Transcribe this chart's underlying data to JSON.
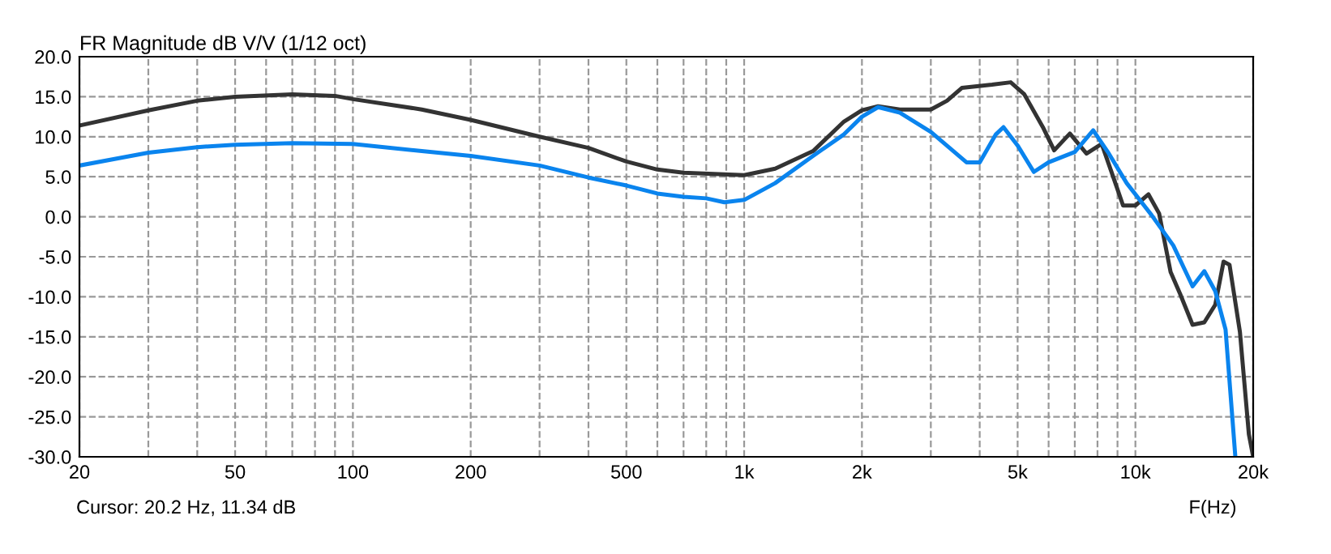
{
  "chart_data": {
    "type": "line",
    "title": "FR Magnitude dB V/V (1/12 oct)",
    "xlabel": "F(Hz)",
    "annotations": [
      "Cursor: 20.2 Hz, 11.34 dB"
    ],
    "log": "x",
    "grid": true,
    "line_style": "solid",
    "marker": "none",
    "xlim": [
      20,
      20000
    ],
    "ylim": [
      -30,
      20
    ],
    "xticks": [
      20,
      {
        "value": 30,
        "label": null
      },
      {
        "value": 40,
        "label": null
      },
      50,
      {
        "value": 60,
        "label": null
      },
      {
        "value": 70,
        "label": null
      },
      {
        "value": 80,
        "label": null
      },
      {
        "value": 90,
        "label": null
      },
      100,
      200,
      {
        "value": 300,
        "label": null
      },
      {
        "value": 400,
        "label": null
      },
      500,
      {
        "value": 600,
        "label": null
      },
      {
        "value": 700,
        "label": null
      },
      {
        "value": 800,
        "label": null
      },
      {
        "value": 900,
        "label": null
      },
      {
        "value": 1000,
        "label": "1k"
      },
      {
        "value": 2000,
        "label": "2k"
      },
      {
        "value": 3000,
        "label": null
      },
      {
        "value": 4000,
        "label": null
      },
      {
        "value": 5000,
        "label": "5k"
      },
      {
        "value": 6000,
        "label": null
      },
      {
        "value": 7000,
        "label": null
      },
      {
        "value": 8000,
        "label": null
      },
      {
        "value": 9000,
        "label": null
      },
      {
        "value": 10000,
        "label": "10k"
      },
      {
        "value": 20000,
        "label": "20k"
      }
    ],
    "yticks": [
      {
        "value": -30,
        "label": "-30.0"
      },
      {
        "value": -25,
        "label": "-25.0"
      },
      {
        "value": -20,
        "label": "-20.0"
      },
      {
        "value": -15,
        "label": "-15.0"
      },
      {
        "value": -10,
        "label": "-10.0"
      },
      {
        "value": -5,
        "label": "-5.0"
      },
      {
        "value": 0,
        "label": "0.0"
      },
      {
        "value": 5,
        "label": "5.0"
      },
      {
        "value": 10,
        "label": "10.0"
      },
      {
        "value": 15,
        "label": "15.0"
      },
      {
        "value": 20,
        "label": "20.0"
      }
    ],
    "series": [
      {
        "color": "#333333",
        "x": [
          20,
          30,
          40,
          50,
          70,
          90,
          100,
          150,
          200,
          300,
          400,
          500,
          600,
          700,
          1000,
          1200,
          1500,
          1800,
          2000,
          2200,
          2500,
          3000,
          3300,
          3600,
          4300,
          4800,
          5200,
          5800,
          6200,
          6800,
          7500,
          8200,
          8800,
          9300,
          10000,
          10800,
          11500,
          12300,
          13000,
          14000,
          15000,
          16000,
          16800,
          17400,
          18500,
          19500,
          20000
        ],
        "values": [
          11.4,
          13.3,
          14.5,
          15.0,
          15.3,
          15.1,
          14.7,
          13.4,
          12.1,
          10.0,
          8.6,
          6.9,
          5.9,
          5.5,
          5.2,
          6.0,
          8.2,
          11.9,
          13.3,
          13.8,
          13.4,
          13.4,
          14.5,
          16.1,
          16.5,
          16.8,
          15.3,
          11.2,
          8.3,
          10.4,
          7.9,
          9.1,
          4.8,
          1.4,
          1.4,
          2.8,
          0.4,
          -6.9,
          -9.6,
          -13.5,
          -13.2,
          -11.0,
          -5.6,
          -6.0,
          -14.4,
          -27.2,
          -30
        ]
      },
      {
        "color": "#0a84ee",
        "x": [
          20,
          30,
          40,
          50,
          70,
          100,
          150,
          200,
          300,
          400,
          500,
          600,
          700,
          800,
          890,
          1000,
          1200,
          1500,
          1800,
          2000,
          2200,
          2500,
          3000,
          3700,
          4000,
          4400,
          4600,
          5000,
          5500,
          6000,
          7000,
          7800,
          8500,
          9500,
          11000,
          12500,
          14000,
          15000,
          16000,
          17000,
          18000
        ],
        "values": [
          6.4,
          8.0,
          8.7,
          9.0,
          9.2,
          9.1,
          8.2,
          7.6,
          6.4,
          4.9,
          3.9,
          2.9,
          2.5,
          2.3,
          1.8,
          2.1,
          4.2,
          7.6,
          10.3,
          12.5,
          13.7,
          13.0,
          10.6,
          6.8,
          6.8,
          10.3,
          11.2,
          8.9,
          5.6,
          6.8,
          8.1,
          10.8,
          8.1,
          4.2,
          0.2,
          -3.6,
          -8.7,
          -6.8,
          -9.3,
          -14.1,
          -29.9
        ]
      }
    ]
  }
}
